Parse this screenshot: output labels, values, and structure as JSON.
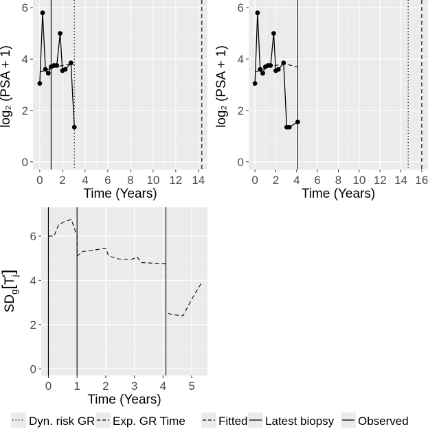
{
  "chart_data": [
    {
      "type": "line",
      "title": "",
      "xlabel": "Time (Years)",
      "ylabel": "log₂ (PSA + 1)",
      "xlim": [
        -0.6,
        14.8
      ],
      "ylim": [
        -0.3,
        6.3
      ],
      "xticks": [
        0,
        2,
        4,
        6,
        8,
        10,
        12,
        14
      ],
      "xtick_labels": [
        "0",
        "2",
        "4",
        "6",
        "8",
        "10",
        "12",
        "14"
      ],
      "yticks": [
        0,
        2,
        4,
        6
      ],
      "ytick_labels": [
        "0",
        "2",
        "4",
        "6"
      ],
      "grid": true,
      "observed": {
        "x": [
          0.0,
          0.25,
          0.5,
          0.75,
          1.0,
          1.25,
          1.5,
          1.8,
          2.0,
          2.25,
          2.75,
          3.05
        ],
        "y": [
          3.05,
          5.8,
          3.6,
          3.45,
          3.7,
          3.75,
          3.75,
          5.0,
          3.55,
          3.6,
          3.85,
          1.35
        ]
      },
      "fitted": {
        "x": [
          0.0,
          0.5,
          1.0,
          1.5,
          2.0,
          2.5,
          3.05
        ],
        "y": [
          3.5,
          3.55,
          3.65,
          3.7,
          3.75,
          3.8,
          3.8
        ]
      },
      "latest_biopsy": 1.0,
      "dyn_risk_gr": 3.05,
      "exp_gr_time": 14.3
    },
    {
      "type": "line",
      "title": "",
      "xlabel": "Time (Years)",
      "ylabel": "log₂ (PSA + 1)",
      "xlim": [
        -0.6,
        16.6
      ],
      "ylim": [
        -0.3,
        6.3
      ],
      "xticks": [
        0,
        2,
        4,
        6,
        8,
        10,
        12,
        14,
        16
      ],
      "xtick_labels": [
        "0",
        "2",
        "4",
        "6",
        "8",
        "10",
        "12",
        "14",
        "16"
      ],
      "yticks": [
        0,
        2,
        4,
        6
      ],
      "ytick_labels": [
        "0",
        "2",
        "4",
        "6"
      ],
      "grid": true,
      "observed": {
        "x": [
          0.0,
          0.25,
          0.5,
          0.75,
          1.0,
          1.25,
          1.5,
          1.8,
          2.0,
          2.25,
          2.75,
          3.05,
          3.3,
          4.1
        ],
        "y": [
          3.05,
          5.8,
          3.6,
          3.45,
          3.7,
          3.75,
          3.75,
          5.0,
          3.55,
          3.6,
          3.85,
          1.35,
          1.35,
          1.55
        ]
      },
      "fitted": {
        "x": [
          0.0,
          0.5,
          1.0,
          1.5,
          2.0,
          2.5,
          3.0,
          3.5,
          4.1
        ],
        "y": [
          3.5,
          3.55,
          3.65,
          3.7,
          3.75,
          3.8,
          3.8,
          3.75,
          3.7
        ]
      },
      "latest_biopsy": 4.1,
      "dyn_risk_gr": 14.7,
      "exp_gr_time": 16.0
    },
    {
      "type": "line",
      "title": "",
      "xlabel": "Time (Years)",
      "ylabel": "SDg[Tj*]",
      "xlim": [
        -0.25,
        5.55
      ],
      "ylim": [
        -0.3,
        7.3
      ],
      "xticks": [
        0,
        1,
        2,
        3,
        4,
        5
      ],
      "xtick_labels": [
        "0",
        "1",
        "2",
        "3",
        "4",
        "5"
      ],
      "yticks": [
        0,
        2,
        4,
        6
      ],
      "ytick_labels": [
        "0",
        "2",
        "4",
        "6"
      ],
      "grid": true,
      "sd_curve": {
        "x": [
          0.0,
          0.2,
          0.35,
          0.55,
          0.8,
          1.0,
          1.0,
          1.2,
          1.5,
          2.0,
          2.1,
          2.5,
          2.9,
          3.1,
          3.25,
          4.1,
          4.1,
          4.3,
          4.7,
          5.0,
          5.35
        ],
        "y": [
          6.0,
          6.0,
          6.5,
          6.65,
          6.75,
          6.0,
          5.1,
          5.3,
          5.35,
          5.45,
          5.1,
          4.95,
          4.95,
          5.05,
          4.8,
          4.75,
          2.55,
          2.45,
          2.4,
          3.15,
          3.9
        ]
      },
      "observed_lines": [
        0.0,
        1.0,
        4.1
      ]
    }
  ],
  "legend": {
    "items": [
      {
        "label": "Dyn. risk GR",
        "style": "dotted"
      },
      {
        "label": "Exp. GR Time",
        "style": "dashed"
      },
      {
        "label": "Fitted",
        "style": "dashed"
      },
      {
        "label": "Latest biopsy",
        "style": "solid"
      },
      {
        "label": "Observed",
        "style": "solid"
      }
    ],
    "placement": "bottom"
  },
  "colors": {
    "panel_bg": "#ebebeb",
    "grid_major": "#ffffff",
    "grid_minor": "#f5f5f5",
    "ink": "#000000",
    "tick_text": "#4d4d4d"
  }
}
